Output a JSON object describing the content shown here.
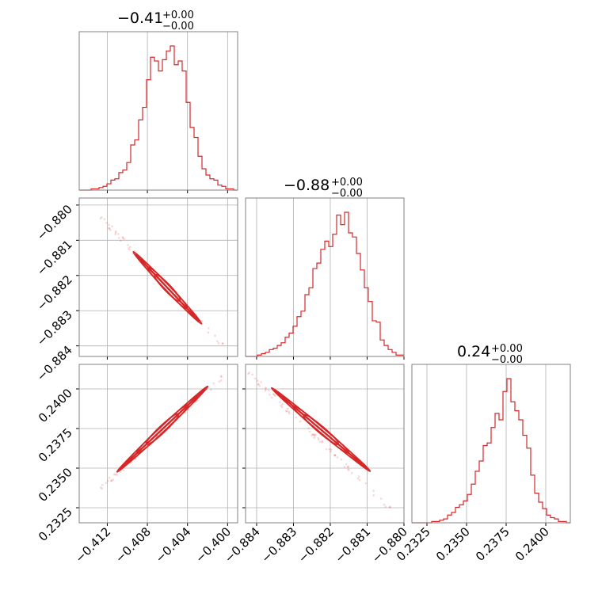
{
  "figure": {
    "type": "corner-plot",
    "accent_color": "#d62728",
    "grid_color": "#b0b0b0"
  },
  "chart_data": [
    {
      "type": "histogram",
      "title": {
        "value": "−0.41",
        "upper": "+0.00",
        "lower": "−0.00"
      },
      "xlim": [
        -0.4148,
        -0.399
      ],
      "xticks": [
        -0.412,
        -0.408,
        -0.404,
        -0.4
      ],
      "xtick_labels": [
        "−0.412",
        "−0.408",
        "−0.404",
        "−0.400"
      ],
      "bins": [
        -0.4148,
        -0.399
      ],
      "counts": [
        0,
        0,
        0,
        1,
        1,
        2,
        3,
        5,
        8,
        9,
        14,
        16,
        22,
        36,
        40,
        56,
        66,
        88,
        106,
        103,
        95,
        104,
        111,
        115,
        100,
        103,
        95,
        70,
        50,
        42,
        27,
        17,
        12,
        9,
        8,
        4,
        3,
        1,
        1,
        0
      ]
    },
    {
      "type": "histogram",
      "title": {
        "value": "−0.88",
        "upper": "+0.00",
        "lower": "−0.00"
      },
      "xlim": [
        -0.8843,
        -0.88
      ],
      "xticks": [
        -0.884,
        -0.883,
        -0.882,
        -0.881,
        -0.88
      ],
      "xtick_labels": [
        "−0.884",
        "−0.883",
        "−0.882",
        "−0.881",
        "−0.880"
      ],
      "bins": [
        -0.8843,
        -0.88
      ],
      "counts": [
        0,
        0,
        0,
        1,
        2,
        3,
        5,
        6,
        8,
        10,
        14,
        17,
        22,
        29,
        33,
        45,
        50,
        64,
        68,
        78,
        84,
        80,
        89,
        103,
        96,
        105,
        90,
        87,
        75,
        63,
        50,
        40,
        26,
        25,
        12,
        8,
        5,
        3,
        1,
        1
      ]
    },
    {
      "type": "histogram",
      "title": {
        "value": "0.24",
        "upper": "+0.00",
        "lower": "−0.00"
      },
      "xlim": [
        0.23155,
        0.24155
      ],
      "xticks": [
        0.2325,
        0.235,
        0.2375,
        0.24
      ],
      "xtick_labels": [
        "0.2325",
        "0.2350",
        "0.2375",
        "0.2400"
      ],
      "bins": [
        0.23155,
        0.24155
      ],
      "counts": [
        0,
        0,
        0,
        0,
        0,
        1,
        1,
        2,
        3,
        6,
        8,
        12,
        14,
        17,
        22,
        30,
        40,
        48,
        60,
        62,
        74,
        85,
        80,
        102,
        112,
        94,
        87,
        80,
        68,
        58,
        37,
        23,
        16,
        11,
        6,
        4,
        3,
        1,
        1,
        0
      ]
    },
    {
      "type": "scatter",
      "xlim": [
        -0.4148,
        -0.399
      ],
      "ylim": [
        -0.8843,
        -0.8798
      ],
      "yticks": [
        -0.88,
        -0.881,
        -0.882,
        -0.883,
        -0.884
      ],
      "ytick_labels": [
        "−0.880",
        "−0.881",
        "−0.882",
        "−0.883",
        "−0.884"
      ],
      "line_start": [
        -0.4127,
        -0.88033
      ],
      "line_end": [
        -0.4,
        -0.88412
      ],
      "core_start": [
        -0.4092,
        -0.88139
      ],
      "core_end": [
        -0.4028,
        -0.88331
      ]
    },
    {
      "type": "scatter",
      "xlim": [
        -0.4148,
        -0.399
      ],
      "ylim": [
        0.23155,
        0.24155
      ],
      "yticks": [
        0.24,
        0.2375,
        0.235,
        0.2325
      ],
      "ytick_labels": [
        "0.2400",
        "0.2375",
        "0.2350",
        "0.2325"
      ],
      "line_start": [
        -0.4127,
        0.2337
      ],
      "line_end": [
        -0.4,
        0.24107
      ],
      "core_start": [
        -0.4108,
        0.2349
      ],
      "core_end": [
        -0.4022,
        0.24003
      ]
    },
    {
      "type": "scatter",
      "xlim": [
        -0.8843,
        -0.88
      ],
      "ylim": [
        0.23155,
        0.24155
      ],
      "yticks": [],
      "ytick_labels": [],
      "line_start": [
        -0.88424,
        0.24107
      ],
      "line_end": [
        -0.88022,
        0.2321
      ],
      "core_start": [
        -0.88353,
        0.23994
      ],
      "core_end": [
        -0.88098,
        0.23493
      ]
    }
  ]
}
